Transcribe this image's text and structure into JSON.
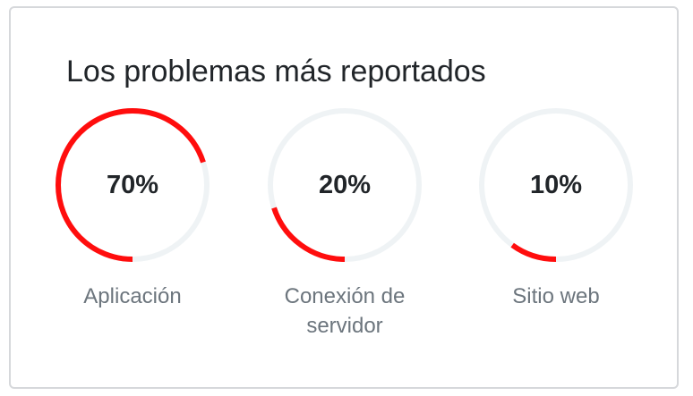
{
  "card": {
    "title": "Los problemas más reportados",
    "items": [
      {
        "percent_label": "70%",
        "value": 70,
        "label": "Aplicación"
      },
      {
        "percent_label": "20%",
        "value": 20,
        "label": "Conexión de servidor"
      },
      {
        "percent_label": "10%",
        "value": 10,
        "label": "Sitio web"
      }
    ],
    "colors": {
      "progress": "#ff0d0d",
      "track": "#eff3f5"
    }
  }
}
